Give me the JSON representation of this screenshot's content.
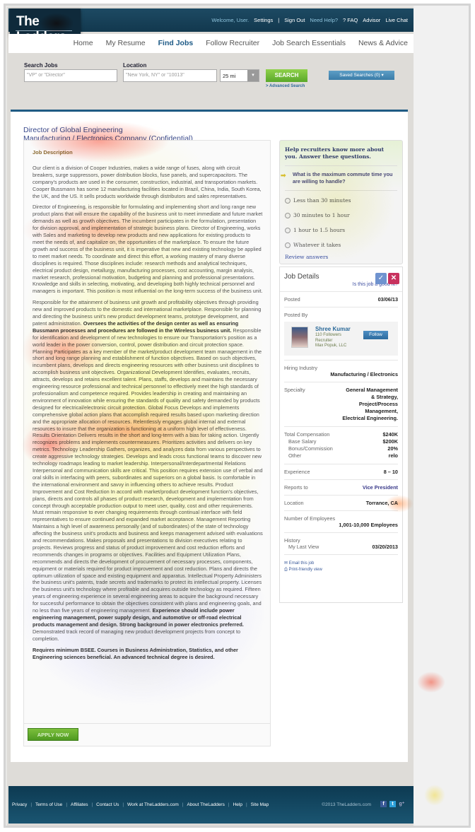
{
  "header": {
    "logo_text": "The Ladders.",
    "top_links": [
      {
        "label": "Welcome, User.",
        "highlight": true
      },
      {
        "label": "Settings",
        "highlight": false
      },
      {
        "label": "|",
        "highlight": false
      },
      {
        "label": "Sign Out",
        "highlight": false
      },
      {
        "label": "Need Help?",
        "highlight": true
      },
      {
        "label": "? FAQ",
        "highlight": false
      },
      {
        "label": "Advisor",
        "highlight": false
      },
      {
        "label": "Live Chat",
        "highlight": false
      }
    ],
    "nav": [
      {
        "label": "Home",
        "active": false
      },
      {
        "label": "My Resume",
        "active": false
      },
      {
        "label": "Find Jobs",
        "active": true
      },
      {
        "label": "Follow Recruiter",
        "active": false
      },
      {
        "label": "Job Search Essentials",
        "active": false
      },
      {
        "label": "News & Advice",
        "active": false
      }
    ]
  },
  "search": {
    "jobs_label": "Search Jobs",
    "jobs_placeholder": "\"VP\" or \"Director\"",
    "location_label": "Location",
    "location_placeholder": "\"New York, NY\" or \"10013\"",
    "radius": "25 mi",
    "search_button": "SEARCH",
    "advanced_link": "> Advanced Search",
    "saved_searches": "Saved Searches (0) ▾"
  },
  "job": {
    "title": "Director of Global Engineering",
    "company": "Manufacturing / Electronics Company (Confidential)",
    "description_heading": "Job Description",
    "paragraphs": [
      [
        {
          "text": "Our client is a division of Cooper Industries, makes a wide range of fuses, along with circuit breakers, surge suppressors, power distribution blocks, fuse panels, and supercapacitors. The company's products are used in the consumer, construction, industrial, and transportation markets. Cooper Bussmann has some 12 manufacturing facilities located in Brazil, China, India, South Korea, the UK, and the US. It sells products worldwide through distributors and sales representatives.",
          "bold": false
        }
      ],
      [
        {
          "text": "Director of Engineering, is responsible for formulating and implementing short and long range new product plans that will ensure the capability of the business unit to meet immediate and future market demands as well as growth objectives. The incumbent participates in the formulation, presentation for division approval, and implementation of strategic business plans.  Director of Engineering, works with Sales and marketing to develop new products and new applications for existing products to meet the needs of, and capitalize on, the opportunities of the marketplace. To ensure the future growth and success of the business unit, it is imperative that new and existing technology be applied to meet market needs. To coordinate and direct this effort, a working mastery of many diverse disciplines is required. Those disciplines include: research methods and analytical techniques, electrical product design, metallurgy, manufacturing processes, cost accounting, margin analysis, market research, professional motivation, budgeting and planning and professional presentations. Knowledge and skills in selecting, motivating, and developing both highly technical personnel and managers is important. This position is most influential on the long-term success of the business unit.",
          "bold": false
        }
      ],
      [
        {
          "text": "Responsible for the attainment of business unit growth and profitability objectives through providing new and improved products to the domestic and international marketplace. Responsible for planning and directing the business unit's new product development teams, prototype development, and patent administration. ",
          "bold": false
        },
        {
          "text": "Oversees the activities of the design center as well as ensuring Bussmann processes and procedures are followed in the Wireless business unit.",
          "bold": true
        },
        {
          "text": " Responsible for identification and development of new technologies to ensure our Transportation's position as a world leader in the power conversion, control, power distribution and circuit protection space. Planning Participates as a key member of the market/product development team management in the short and long range planning and establishment of function objectives. Based on such objectives, incumbent plans, develops and directs engineering resources with other business unit disciplines to accomplish business unit objectives. Organizational Development Identifies, evaluates, recruits, attracts, develops and retains excellent talent. Plans, staffs, develops and maintains the necessary engineering resource professional and technical personnel to effectively meet the high standards of professionalism and competence required. Provides leadership in creating and maintaining an environment of innovation while ensuring the standards of quality and safety demanded by products designed for electrical/electronic circuit protection. Global Focus Develops and implements comprehensive global action plans that accomplish required results based upon marketing direction and the appropriate allocation of resources. Relentlessly engages global internal and external resources to insure that the organization is functioning at a uniform high level of effectiveness. Results Orientation Delivers results in the short and long-term with a bias for taking action. Urgently recognizes problems and implements countermeasures. Prioritizes activities and delivers on key metrics. Technology Leadership Gathers, organizes, and analyzes data from various perspectives to create aggressive technology strategies. Develops and leads cross functional teams to discover new technology roadmaps leading to market leadership. Interpersonal/Interdepartmental Relations Interpersonal and communication skills are critical. This position requires extension use of verbal and oral skills in interfacing with peers, subordinates and superiors on a global basis. Is comfortable in the international environment and savvy in influencing others to achieve results. Product Improvement and Cost Reduction In accord with market/product development function's objectives, plans, directs and controls all phases of product research, development and implementation from concept through acceptable production output to meet user, quality, cost and other requirements. Must remain responsive to ever changing requirements through continual interface with field representatives to ensure continued and expanded market acceptance. Management Reporting Maintains a high level of awareness personally (and of subordinates) of the state of technology affecting the business unit's products and business and keeps management advised with evaluations and recommendations. Makes proposals and presentations to division executives relating to projects. Reviews progress and status of product improvement and cost reduction efforts and recommends changes in programs or objectives. Facilities and Equipment Utilization Plans, recommends and directs the development of procurement of necessary processes, components, equipment or materials required for product improvement and cost reduction. Plans and directs the optimum utilization of space and existing equipment and apparatus. Intellectual Property Administers the business unit's patents, trade secrets and trademarks to protect its intellectual property. Licenses the business unit's technology where profitable and acquires outside technology as required. Fifteen years of engineering experience in several engineering areas to acquire the background necessary for successful performance to obtain the objectives consistent with plans and engineering goals, and no less than five years of engineering management. ",
          "bold": false
        },
        {
          "text": "Experience should include power engineering management, power supply design, and automotive or off-road electrical products management and design. Strong background in power electronics preferred.",
          "bold": true
        },
        {
          "text": " Demonstrated track record of managing new product development projects from concept to completion.",
          "bold": false
        }
      ],
      [
        {
          "text": "Requires minimum BSEE. Courses in Business Administration, Statistics, and other Engineering sciences beneficial. An advanced technical degree is desired.",
          "bold": true
        }
      ]
    ],
    "apply_button": "APPLY NOW"
  },
  "questions": {
    "heading": "Help recruiters know more about you. Answer these questions.",
    "question": "What is the maximum commute time you are willing to handle?",
    "options": [
      "Less than 30 minutes",
      "30 minutes to 1 hour",
      "1 hour to 1.5 hours",
      "Whatever it takes"
    ],
    "review_link": "Review answers"
  },
  "details": {
    "title": "Job Details",
    "fit_question": "Is this job a good fit?",
    "posted_label": "Posted",
    "posted_value": "03/06/13",
    "posted_by_label": "Posted By",
    "recruiter": {
      "name": "Shree Kumar",
      "followers": "110 Followers",
      "role": "Recruiter",
      "company": "Max Popuk, LLC",
      "follow_button": "Follow"
    },
    "industry_label": "Hiring Industry",
    "industry_value": "Manufacturing / Electronics",
    "specialty_label": "Specialty",
    "specialty_value": "General Management & Strategy, Project/Process Management, Electrical Engineering.",
    "compensation": [
      {
        "label": "Total Compensation",
        "value": "$240K"
      },
      {
        "label": "Base Salary",
        "value": "$200K"
      },
      {
        "label": "Bonus/Commission",
        "value": "20%"
      },
      {
        "label": "Other",
        "value": "relo"
      }
    ],
    "experience_label": "Experience",
    "experience_value": "8 – 10",
    "reports_label": "Reports to",
    "reports_value": "Vice President",
    "location_label": "Location",
    "location_value": "Torrance, CA",
    "employees_label": "Number of Employees",
    "employees_value": "1,001-10,000 Employees",
    "history_label": "History",
    "last_view_label": "My Last View",
    "last_view_value": "03/20/2013",
    "email_link": "Email this job",
    "print_link": "Print-friendly view"
  },
  "footer": {
    "links": [
      "Privacy",
      "Terms of Use",
      "Affiliates",
      "Contact Us",
      "Work at TheLadders.com",
      "About TheLadders",
      "Help",
      "Site Map"
    ],
    "copyright": "©2013 TheLadders.com",
    "social": [
      "facebook-icon",
      "twitter-icon",
      "google-plus-icon"
    ]
  },
  "colors": {
    "brand_dark": "#12384e",
    "accent_green": "#5aa82a",
    "link_blue": "#2d6b9a",
    "reject": "#c8325e"
  }
}
